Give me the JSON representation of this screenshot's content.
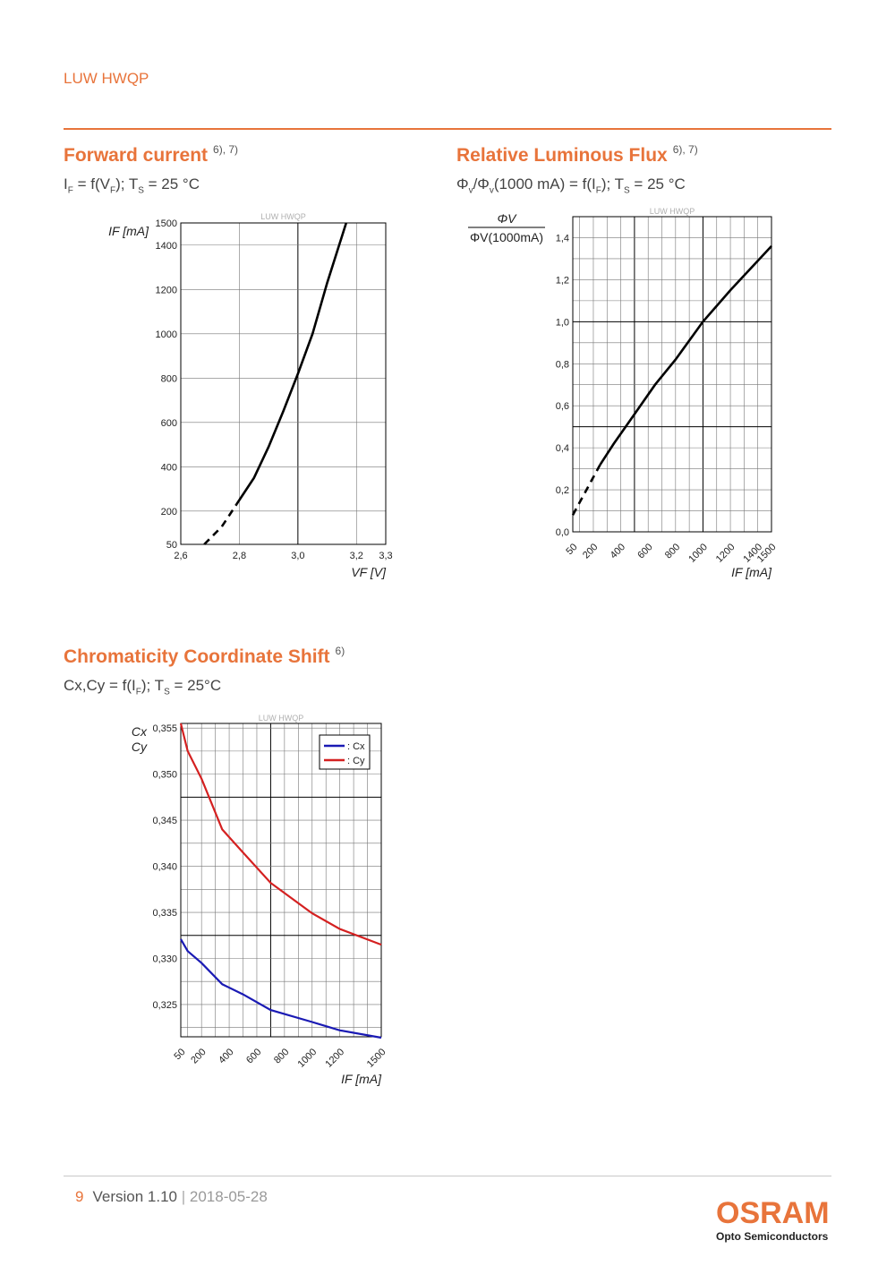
{
  "header": {
    "product": "LUW HWQP"
  },
  "sections": {
    "forward": {
      "title": "Forward current",
      "refs": "6), 7)"
    },
    "flux": {
      "title": "Relative Luminous Flux",
      "refs": "6), 7)"
    },
    "chroma": {
      "title": "Chromaticity Coordinate Shift",
      "refs": "6)"
    }
  },
  "footer": {
    "page": "9",
    "version": "Version 1.10",
    "separator": "|",
    "date": "2018-05-28"
  },
  "logo": {
    "brand": "OSRAM",
    "tagline": "Opto Semiconductors"
  },
  "colors": {
    "accent": "#e8743b",
    "cx": "#1a1ab4",
    "cy": "#d42020"
  },
  "chart_data": [
    {
      "type": "line",
      "watermark": "LUW HWQP",
      "ylabel": "IF [mA]",
      "xlabel": "VF [V]",
      "xlim": [
        2.6,
        3.3
      ],
      "ylim": [
        50,
        1500
      ],
      "x_ticks": [
        "2,6",
        "2,8",
        "3,0",
        "3,2",
        "3,3"
      ],
      "y_ticks": [
        "50",
        "200",
        "400",
        "600",
        "800",
        "1000",
        "1200",
        "1400",
        "1500"
      ],
      "series": [
        {
          "style": "dashed",
          "x": [
            2.68,
            2.74,
            2.79
          ],
          "y": [
            50,
            130,
            230
          ]
        },
        {
          "style": "solid",
          "x": [
            2.79,
            2.85,
            2.9,
            2.95,
            3.0,
            3.05,
            3.1,
            3.165
          ],
          "y": [
            230,
            350,
            490,
            650,
            820,
            1000,
            1230,
            1500
          ]
        }
      ]
    },
    {
      "type": "line",
      "watermark": "LUW HWQP",
      "ylabel_numerator": "ΦV",
      "ylabel_denominator": "ΦV(1000mA)",
      "xlabel": "IF [mA]",
      "xlim": [
        50,
        1500
      ],
      "ylim": [
        0,
        1.5
      ],
      "x_ticks": [
        "50",
        "200",
        "400",
        "600",
        "800",
        "1000",
        "1200",
        "1400",
        "1500"
      ],
      "y_ticks": [
        "0,0",
        "0,2",
        "0,4",
        "0,6",
        "0,8",
        "1,0",
        "1,2",
        "1,4"
      ],
      "series": [
        {
          "style": "dashed",
          "x": [
            50,
            150,
            250
          ],
          "y": [
            0.08,
            0.2,
            0.32
          ]
        },
        {
          "style": "solid",
          "x": [
            250,
            350,
            500,
            650,
            800,
            1000,
            1200,
            1500
          ],
          "y": [
            0.32,
            0.42,
            0.56,
            0.7,
            0.82,
            1.0,
            1.15,
            1.36
          ]
        }
      ]
    },
    {
      "type": "line",
      "watermark": "LUW HWQP",
      "ylabel": [
        "Cx",
        "Cy"
      ],
      "xlabel": "IF [mA]",
      "xlim": [
        50,
        1500
      ],
      "ylim": [
        0.3215,
        0.3555
      ],
      "x_ticks": [
        "50",
        "200",
        "400",
        "600",
        "800",
        "1000",
        "1200",
        "1500"
      ],
      "y_ticks": [
        "0,325",
        "0,330",
        "0,335",
        "0,340",
        "0,345",
        "0,350",
        "0,355"
      ],
      "legend": [
        ": Cx",
        ": Cy"
      ],
      "legend_position": "top-right",
      "series": [
        {
          "name": ": Cx",
          "color": "#1a1ab4",
          "x": [
            50,
            100,
            200,
            350,
            500,
            700,
            1000,
            1200,
            1500
          ],
          "y": [
            0.3321,
            0.3308,
            0.3295,
            0.3272,
            0.3261,
            0.3244,
            0.3231,
            0.3222,
            0.3214
          ]
        },
        {
          "name": ": Cy",
          "color": "#d42020",
          "x": [
            50,
            100,
            200,
            350,
            500,
            700,
            1000,
            1200,
            1500
          ],
          "y": [
            0.3555,
            0.3525,
            0.3495,
            0.344,
            0.3415,
            0.3382,
            0.3349,
            0.3332,
            0.3315
          ]
        }
      ]
    }
  ]
}
